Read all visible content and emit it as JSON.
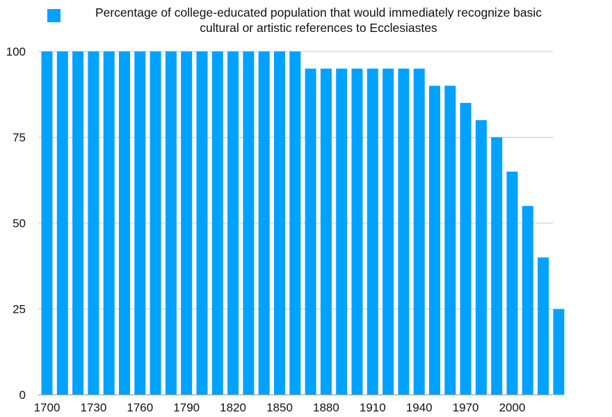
{
  "chart_data": {
    "type": "bar",
    "legend": {
      "label_line1": "Percentage of college-educated population that would immediately recognize basic",
      "label_line2": "cultural or artistic references to Ecclesiastes",
      "placement": "top"
    },
    "series": [
      {
        "name": "Percentage of college-educated population that would immediately recognize basic cultural or artistic references to Ecclesiastes",
        "color": "#00a2ff",
        "values": [
          100,
          100,
          100,
          100,
          100,
          100,
          100,
          100,
          100,
          100,
          100,
          100,
          100,
          100,
          100,
          100,
          100,
          95,
          95,
          95,
          95,
          95,
          95,
          95,
          95,
          90,
          90,
          85,
          80,
          75,
          65,
          55,
          40,
          25
        ]
      }
    ],
    "categories": [
      "1700",
      "1710",
      "1720",
      "1730",
      "1740",
      "1750",
      "1760",
      "1770",
      "1780",
      "1790",
      "1800",
      "1810",
      "1820",
      "1830",
      "1840",
      "1850",
      "1860",
      "1870",
      "1880",
      "1890",
      "1900",
      "1910",
      "1920",
      "1930",
      "1940",
      "1950",
      "1960",
      "1970",
      "1980",
      "1990",
      "2000",
      "2010",
      "2020",
      "2030"
    ],
    "x_tick_labels": [
      "1700",
      "1730",
      "1760",
      "1790",
      "1820",
      "1850",
      "1880",
      "1910",
      "1940",
      "1970",
      "2000"
    ],
    "y_ticks": [
      "0",
      "25",
      "50",
      "75",
      "100"
    ],
    "ylim": [
      0,
      100
    ],
    "grid": true,
    "colors": {
      "bar": "#00a2ff",
      "grid": "#c8c8c8",
      "axis": "#888888"
    }
  }
}
